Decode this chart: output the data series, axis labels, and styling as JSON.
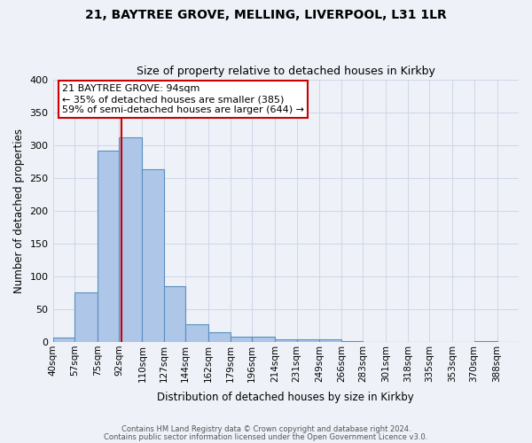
{
  "title": "21, BAYTREE GROVE, MELLING, LIVERPOOL, L31 1LR",
  "subtitle": "Size of property relative to detached houses in Kirkby",
  "xlabel": "Distribution of detached houses by size in Kirkby",
  "ylabel": "Number of detached properties",
  "categories": [
    "40sqm",
    "57sqm",
    "75sqm",
    "92sqm",
    "110sqm",
    "127sqm",
    "144sqm",
    "162sqm",
    "179sqm",
    "196sqm",
    "214sqm",
    "231sqm",
    "249sqm",
    "266sqm",
    "283sqm",
    "301sqm",
    "318sqm",
    "335sqm",
    "353sqm",
    "370sqm",
    "388sqm"
  ],
  "values": [
    7,
    75,
    292,
    312,
    263,
    85,
    27,
    15,
    8,
    8,
    4,
    4,
    4,
    2,
    0,
    0,
    0,
    0,
    0,
    2,
    0
  ],
  "bar_color": "#aec6e8",
  "bar_edge_color": "#5a8fc2",
  "ylim": [
    0,
    400
  ],
  "yticks": [
    0,
    50,
    100,
    150,
    200,
    250,
    300,
    350,
    400
  ],
  "annotation_title": "21 BAYTREE GROVE: 94sqm",
  "annotation_line1": "← 35% of detached houses are smaller (385)",
  "annotation_line2": "59% of semi-detached houses are larger (644) →",
  "annotation_box_color": "#ffffff",
  "annotation_box_edge_color": "#cc0000",
  "vline_color": "#cc0000",
  "grid_color": "#d0d8e8",
  "bg_color": "#eef2f8",
  "footnote1": "Contains HM Land Registry data © Crown copyright and database right 2024.",
  "footnote2": "Contains public sector information licensed under the Open Government Licence v3.0."
}
